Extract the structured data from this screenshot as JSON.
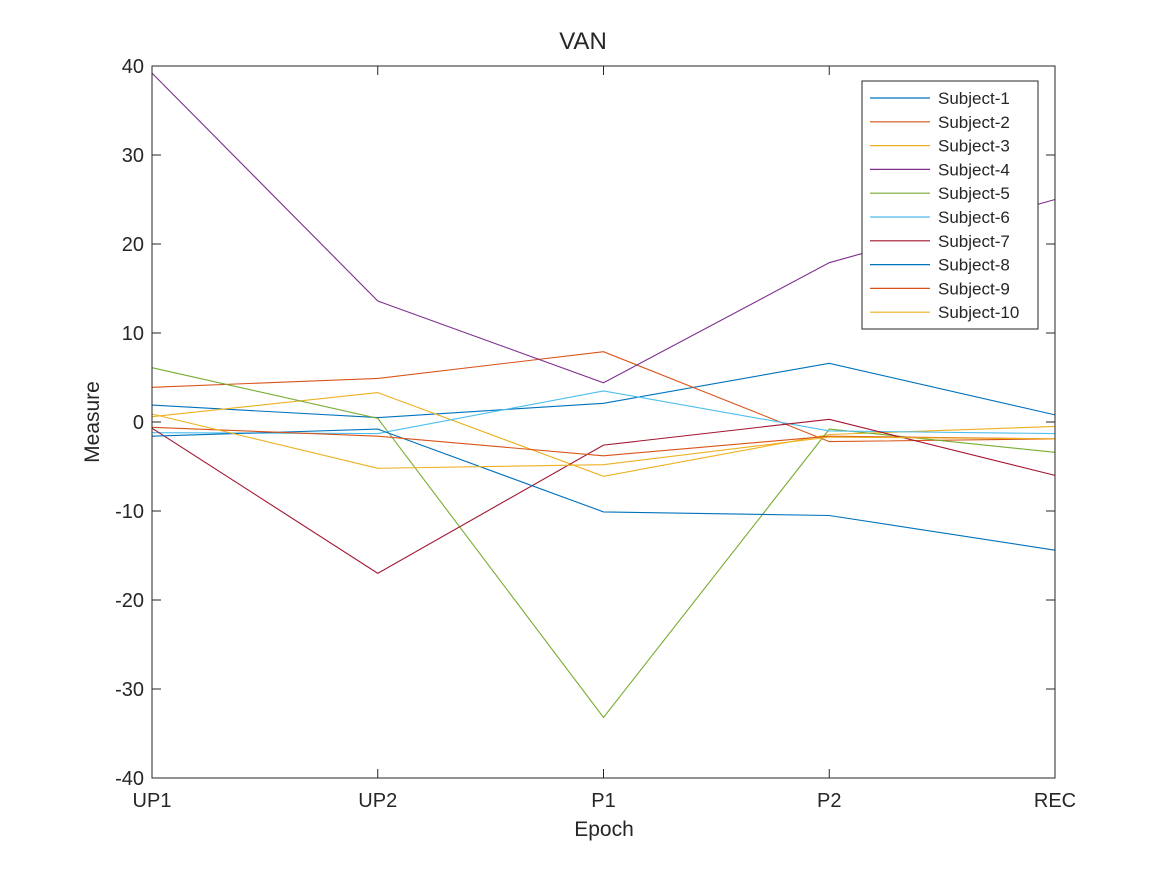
{
  "chart_data": {
    "type": "line",
    "title": "VAN",
    "xlabel": "Epoch",
    "ylabel": "Measure",
    "categories": [
      "UP1",
      "UP2",
      "P1",
      "P2",
      "REC"
    ],
    "ylim": [
      -40,
      40
    ],
    "yticks": [
      -40,
      -30,
      -20,
      -10,
      0,
      10,
      20,
      30,
      40
    ],
    "grid": false,
    "legend_position": "top-right",
    "series": [
      {
        "name": "Subject-1",
        "color": "#0072BD",
        "values": [
          1.9,
          0.5,
          2.1,
          6.6,
          0.8
        ]
      },
      {
        "name": "Subject-2",
        "color": "#D95319",
        "values": [
          3.9,
          4.9,
          7.9,
          -2.2,
          -1.9
        ]
      },
      {
        "name": "Subject-3",
        "color": "#EDB120",
        "values": [
          0.6,
          3.3,
          -6.1,
          -1.4,
          -0.5
        ]
      },
      {
        "name": "Subject-4",
        "color": "#7E2F8E",
        "values": [
          39.2,
          13.6,
          4.4,
          17.9,
          25.0
        ]
      },
      {
        "name": "Subject-5",
        "color": "#77AC30",
        "values": [
          6.1,
          0.4,
          -33.2,
          -0.8,
          -3.4
        ]
      },
      {
        "name": "Subject-6",
        "color": "#4DBEEE",
        "values": [
          -1.2,
          -1.3,
          3.5,
          -1.0,
          -1.3
        ]
      },
      {
        "name": "Subject-7",
        "color": "#A2142F",
        "values": [
          -0.7,
          -17.0,
          -2.6,
          0.3,
          -6.0
        ]
      },
      {
        "name": "Subject-8",
        "color": "#0072BD",
        "values": [
          -1.6,
          -0.8,
          -10.1,
          -10.5,
          -14.4
        ]
      },
      {
        "name": "Subject-9",
        "color": "#D95319",
        "values": [
          -0.6,
          -1.6,
          -3.8,
          -1.6,
          -1.9
        ]
      },
      {
        "name": "Subject-10",
        "color": "#EDB120",
        "values": [
          0.9,
          -5.2,
          -4.8,
          -1.7,
          -1.9
        ]
      }
    ]
  }
}
